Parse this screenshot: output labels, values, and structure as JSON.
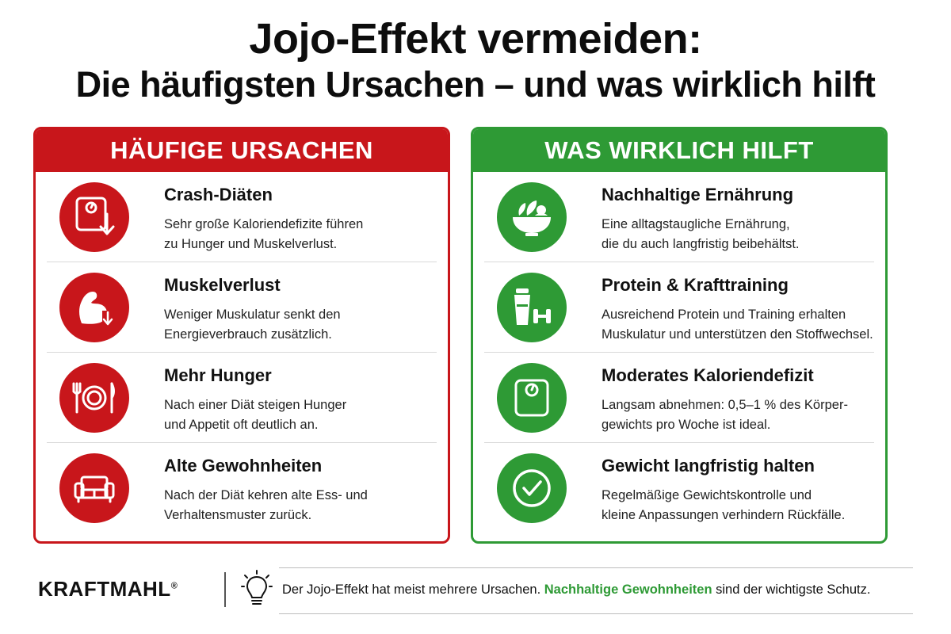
{
  "title": {
    "line1": "Jojo-Effekt vermeiden:",
    "line2": "Die häufigsten Ursachen – und was wirklich hilft"
  },
  "colors": {
    "red": "#c8161b",
    "green": "#2e9a35"
  },
  "causes": {
    "header": "HÄUFIGE URSACHEN",
    "items": [
      {
        "icon": "scale-down-icon",
        "title": "Crash-Diäten",
        "text1": "Sehr große Kaloriendefizite führen",
        "text2": "zu Hunger und Muskelverlust."
      },
      {
        "icon": "arm-muscle-icon",
        "title": "Muskelverlust",
        "text1": "Weniger Muskulatur senkt den",
        "text2": "Energieverbrauch zusätzlich."
      },
      {
        "icon": "plate-cutlery-icon",
        "title": "Mehr Hunger",
        "text1": "Nach einer Diät steigen Hunger",
        "text2": "und Appetit oft deutlich an."
      },
      {
        "icon": "sofa-icon",
        "title": "Alte Gewohnheiten",
        "text1": "Nach der Diät kehren alte Ess- und",
        "text2": "Verhaltensmuster zurück."
      }
    ]
  },
  "solutions": {
    "header": "WAS WIRKLICH HILFT",
    "items": [
      {
        "icon": "salad-bowl-icon",
        "title": "Nachhaltige Ernährung",
        "text1": "Eine alltagstaugliche Ernährung,",
        "text2": "die du auch langfristig beibehältst."
      },
      {
        "icon": "shaker-dumbbell-icon",
        "title": "Protein & Krafttraining",
        "text1": "Ausreichend Protein und Training erhalten",
        "text2": "Muskulatur und unterstützen den Stoffwechsel."
      },
      {
        "icon": "scale-icon",
        "title": "Moderates Kaloriendefizit",
        "text1": "Langsam abnehmen: 0,5–1 % des Körper-",
        "text2": "gewichts pro Woche ist ideal."
      },
      {
        "icon": "checkmark-icon",
        "title": "Gewicht langfristig halten",
        "text1": "Regelmäßige Gewichtskontrolle und",
        "text2": "kleine Anpassungen verhindern Rückfälle."
      }
    ]
  },
  "footer": {
    "brand": "KRAFTMAHL",
    "brand_mark": "®",
    "icon": "lightbulb-icon",
    "text_before": "Der Jojo-Effekt hat meist mehrere Ursachen. ",
    "text_highlight": "Nachhaltige Gewohnheiten",
    "text_after": " sind der wichtigste Schutz."
  }
}
